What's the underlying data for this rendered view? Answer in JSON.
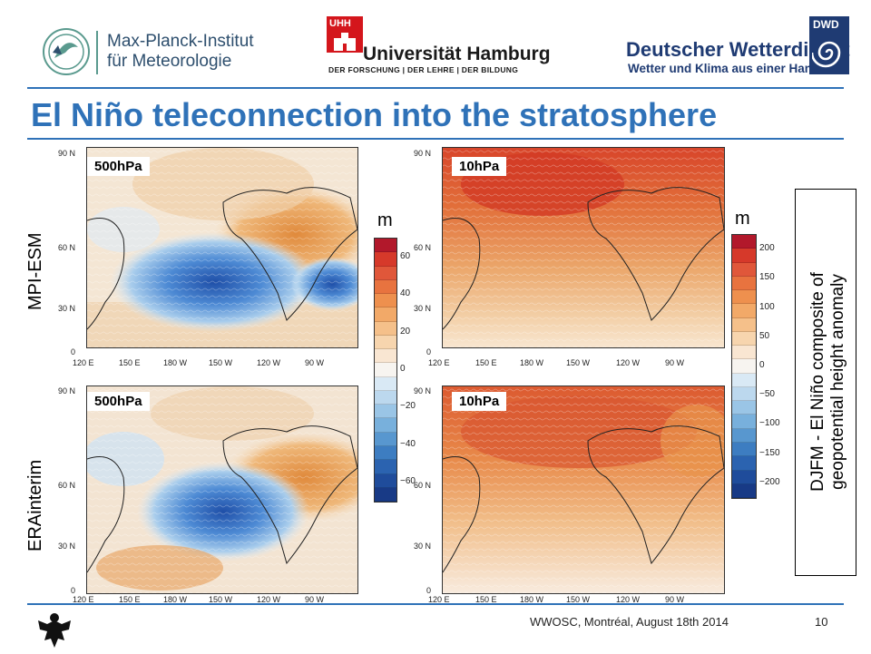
{
  "header": {
    "mpi_line1": "Max-Planck-Institut",
    "mpi_line2": "für Meteorologie",
    "uhh_mark": "UHH",
    "uhh_name": "Universität Hamburg",
    "uhh_motto": "DER FORSCHUNG | DER LEHRE | DER BILDUNG",
    "dwd_name": "Deutscher Wetterdienst",
    "dwd_sub": "Wetter und Klima aus einer Hand",
    "dwd_mark": "DWD"
  },
  "title": "El Niño teleconnection into the stratosphere",
  "rows": [
    "MPI-ESM",
    "ERAinterim"
  ],
  "panels": [
    {
      "label": "500hPa"
    },
    {
      "label": "10hPa"
    },
    {
      "label": "500hPa"
    },
    {
      "label": "10hPa"
    }
  ],
  "lat_ticks": [
    "90 N",
    "60 N",
    "30 N",
    "0"
  ],
  "lon_ticks": [
    "120 E",
    "150 E",
    "180 W",
    "150 W",
    "120 W",
    "90 W"
  ],
  "colorbar_500": {
    "unit": "m",
    "ticks": [
      "60",
      "40",
      "20",
      "0",
      "−20",
      "−40",
      "−60"
    ]
  },
  "colorbar_10": {
    "unit": "m",
    "ticks": [
      "200",
      "150",
      "100",
      "50",
      "0",
      "−50",
      "−100",
      "−150",
      "−200"
    ]
  },
  "description": {
    "line1": "DJFM - El Niño composite of",
    "line2": "geopotential height anomaly"
  },
  "footer": {
    "text": "WWOSC, Montréal, August 18th  2014",
    "page": "10"
  },
  "colors": {
    "accent": "#2f72b8",
    "uhh_red": "#d4161c",
    "dwd_blue": "#1f3b73"
  }
}
